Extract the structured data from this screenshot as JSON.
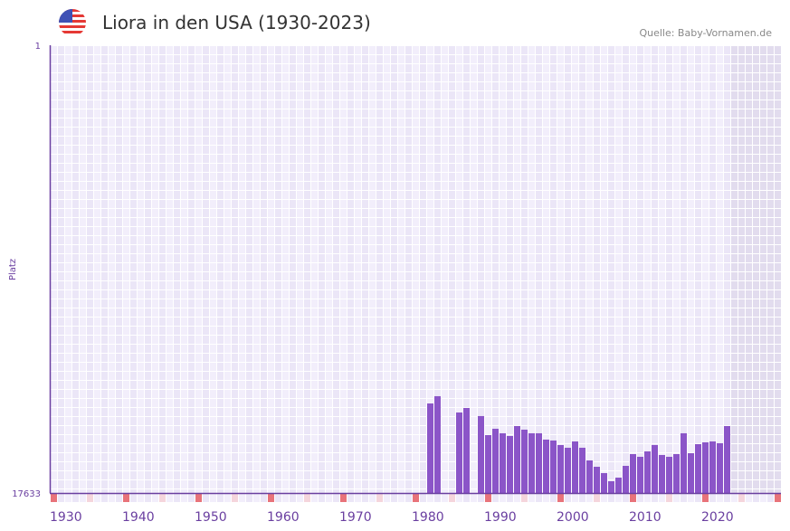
{
  "header": {
    "title": "Liora in den USA (1930-2023)",
    "source": "Quelle: Baby-Vornamen.de",
    "flag_icon": "us-flag-icon"
  },
  "colors": {
    "bar": "#8b55c8",
    "axis": "#6a3fa0",
    "grid_a": "#f2eefb",
    "grid_b": "#ebe6f7",
    "future": "#e2dcee",
    "decade_marker": "#e8737a",
    "half_marker": "#f5d5dc"
  },
  "chart_data": {
    "type": "bar",
    "title": "Liora in den USA (1930-2023)",
    "xlabel": "",
    "ylabel": "Platz",
    "ylim": [
      1,
      17633
    ],
    "y_inverted": true,
    "y_ticks": [
      "1",
      "17633"
    ],
    "x_range": [
      1930,
      2030
    ],
    "x_ticks": [
      "1930",
      "1940",
      "1950",
      "1960",
      "1970",
      "1980",
      "1990",
      "2000",
      "2010",
      "2020"
    ],
    "years": [
      1982,
      1983,
      1986,
      1987,
      1989,
      1990,
      1991,
      1992,
      1993,
      1994,
      1995,
      1996,
      1997,
      1998,
      1999,
      2000,
      2001,
      2002,
      2003,
      2004,
      2005,
      2006,
      2007,
      2008,
      2009,
      2010,
      2011,
      2012,
      2013,
      2014,
      2015,
      2016,
      2017,
      2018,
      2019,
      2020,
      2021,
      2022,
      2023
    ],
    "ranks": [
      14107,
      13821,
      14462,
      14284,
      14604,
      15352,
      15103,
      15281,
      15388,
      14996,
      15139,
      15281,
      15281,
      15530,
      15566,
      15744,
      15851,
      15602,
      15851,
      16350,
      16600,
      16849,
      17170,
      17027,
      16564,
      16101,
      16207,
      15994,
      15744,
      16136,
      16207,
      16101,
      15281,
      16065,
      15709,
      15638,
      15602,
      15673,
      14996
    ]
  }
}
